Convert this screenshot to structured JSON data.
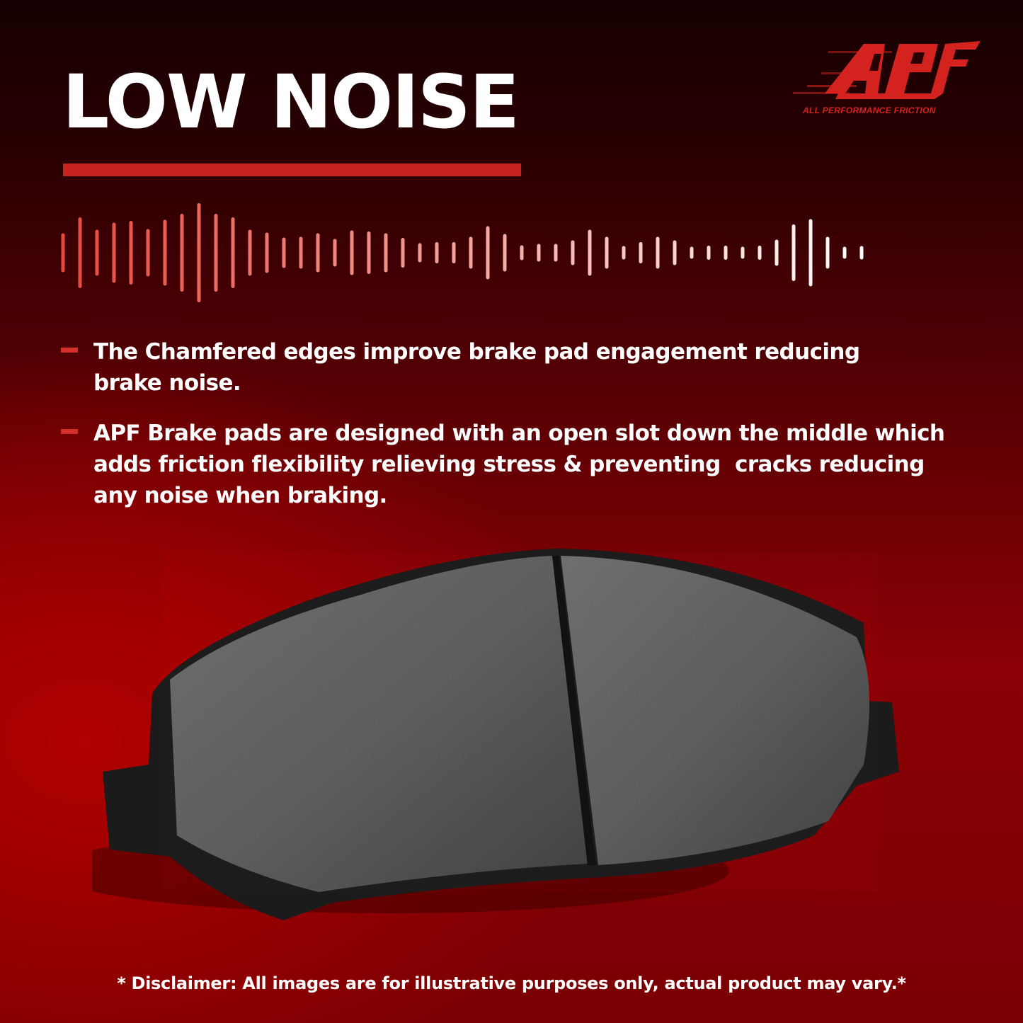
{
  "headline": "LOW NOISE",
  "brand": {
    "logo_text": "APF",
    "tagline": "ALL PERFORMANCE FRICTION",
    "color": "#d4231f"
  },
  "accent_color": "#c8221f",
  "bullets": [
    {
      "text": "The Chamfered edges improve brake pad engagement reducing brake noise."
    },
    {
      "text": "APF Brake pads are designed with an open slot down the middle which adds friction flexibility relieving stress & preventing  cracks reducing any noise when braking."
    }
  ],
  "disclaimer": "* Disclaimer: All images are for illustrative purposes only, actual product may vary.*",
  "icons": [
    "sound-wave-icon",
    "brake-pad-image"
  ]
}
